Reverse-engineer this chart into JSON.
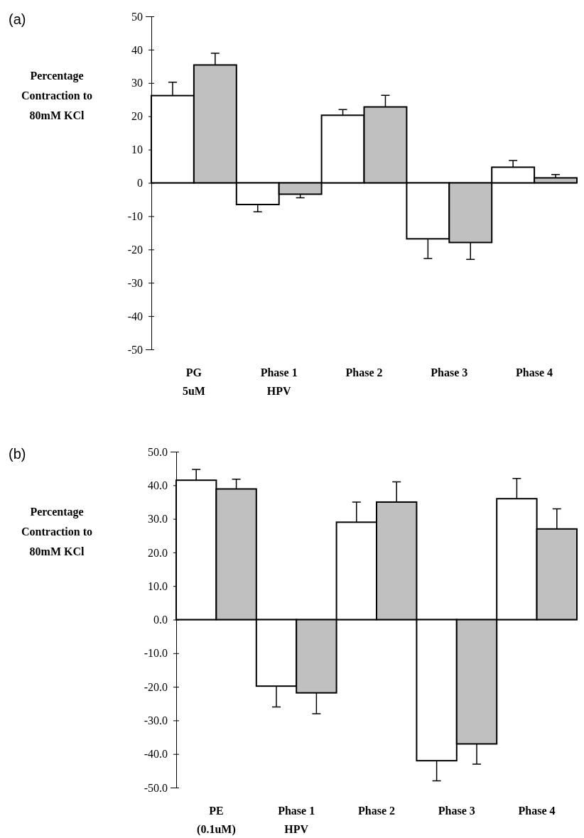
{
  "chart_data": [
    {
      "type": "bar",
      "annotations": [
        "(a)"
      ],
      "ylabel": "Percentage Contraction to 80mM KCl",
      "categories": [
        "PG\n5uM",
        "Phase 1\nHPV",
        "Phase 2",
        "Phase 3",
        "Phase 4"
      ],
      "ylim": [
        -50,
        50
      ],
      "yticks": [
        -50,
        -40,
        -30,
        -20,
        -10,
        0,
        10,
        20,
        30,
        40,
        50
      ],
      "series": [
        {
          "color": "#ffffff",
          "values": [
            26.2,
            -6.5,
            20.3,
            -16.8,
            4.7
          ],
          "errors": [
            [
              26.2,
              30.2
            ],
            [
              -8.7,
              -6.5
            ],
            [
              20.3,
              22
            ],
            [
              -22.7,
              -16.8
            ],
            [
              4.7,
              6.7
            ]
          ]
        },
        {
          "color": "#c0c0c0",
          "values": [
            35.4,
            -3.4,
            22.8,
            -17.9,
            1.5
          ],
          "errors": [
            [
              35.4,
              38.9
            ],
            [
              -4.5,
              -3.4
            ],
            [
              22.8,
              26.3
            ],
            [
              -23,
              -17.9
            ],
            [
              1.5,
              2.5
            ]
          ]
        }
      ]
    },
    {
      "type": "bar",
      "annotations": [
        "(b)"
      ],
      "ylabel": "Percentage Contraction to 80mM KCl",
      "categories": [
        "PE\n(0.1uM)",
        "Phase 1\nHPV",
        "Phase 2",
        "Phase 3",
        "Phase 4"
      ],
      "ylim": [
        -50,
        50
      ],
      "yticks": [
        {
          "value": -50,
          "label": "-50.0"
        },
        {
          "value": -40,
          "label": "-40.0"
        },
        {
          "value": -30,
          "label": "-30.0"
        },
        {
          "value": -20,
          "label": "-20.0"
        },
        {
          "value": -10,
          "label": "-10.0"
        },
        {
          "value": 0,
          "label": "0.0"
        },
        {
          "value": 10,
          "label": "10.0"
        },
        {
          "value": 20,
          "label": "20.0"
        },
        {
          "value": 30,
          "label": "30.0"
        },
        {
          "value": 40,
          "label": "40.0"
        },
        {
          "value": 50,
          "label": "50.0"
        }
      ],
      "series": [
        {
          "color": "#ffffff",
          "values": [
            41.5,
            -19.8,
            29,
            -42,
            36
          ],
          "errors": [
            [
              41.5,
              44.7
            ],
            [
              -26,
              -19.8
            ],
            [
              29,
              35
            ],
            [
              -48,
              -42
            ],
            [
              36,
              42
            ]
          ]
        },
        {
          "color": "#c0c0c0",
          "values": [
            38.9,
            -21.8,
            35,
            -37,
            27
          ],
          "errors": [
            [
              38.9,
              41.8
            ],
            [
              -28,
              -21.8
            ],
            [
              35,
              41
            ],
            [
              -43,
              -37
            ],
            [
              27,
              33
            ]
          ]
        }
      ]
    }
  ]
}
